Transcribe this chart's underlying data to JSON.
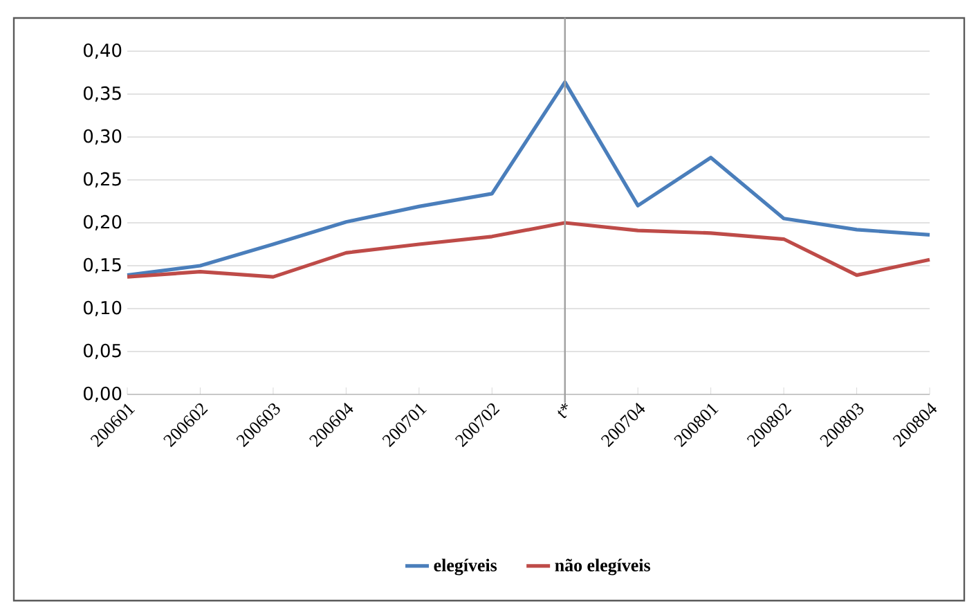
{
  "chart_data": {
    "type": "line",
    "categories": [
      "200601",
      "200602",
      "200603",
      "200604",
      "200701",
      "200702",
      "t*",
      "200704",
      "200801",
      "200802",
      "200803",
      "200804"
    ],
    "series": [
      {
        "name": "elegíveis",
        "color": "#4a7ebb",
        "values": [
          0.139,
          0.15,
          0.175,
          0.201,
          0.219,
          0.234,
          0.364,
          0.22,
          0.276,
          0.205,
          0.192,
          0.186
        ]
      },
      {
        "name": "não elegíveis",
        "color": "#be4b48",
        "values": [
          0.137,
          0.143,
          0.137,
          0.165,
          0.175,
          0.184,
          0.2,
          0.191,
          0.188,
          0.181,
          0.139,
          0.157
        ]
      }
    ],
    "ylim": [
      0,
      0.4
    ],
    "yticks": [
      {
        "value": 0,
        "label": "0,00"
      },
      {
        "value": 0.05,
        "label": "0,05"
      },
      {
        "value": 0.1,
        "label": "0,10"
      },
      {
        "value": 0.15,
        "label": "0,15"
      },
      {
        "value": 0.2,
        "label": "0,20"
      },
      {
        "value": 0.25,
        "label": "0,25"
      },
      {
        "value": 0.3,
        "label": "0,30"
      },
      {
        "value": 0.35,
        "label": "0,35"
      },
      {
        "value": 0.4,
        "label": "0,40"
      }
    ],
    "ref_lines": [
      {
        "axis": "x",
        "value": "t*",
        "color": "#a0a0a0"
      }
    ],
    "grid": "y",
    "legend": "bottom",
    "marker": "none",
    "line_style": "solid"
  }
}
